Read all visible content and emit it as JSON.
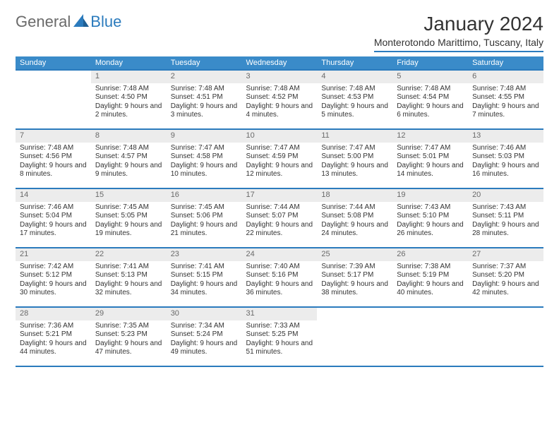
{
  "logo": {
    "general": "General",
    "blue": "Blue"
  },
  "title": "January 2024",
  "location": "Monterotondo Marittimo, Tuscany, Italy",
  "colors": {
    "header_bg": "#3a8bc9",
    "header_border": "#2b7bbd",
    "daynum_bg": "#ececec",
    "text": "#333333",
    "muted": "#6a6a6a"
  },
  "day_headers": [
    "Sunday",
    "Monday",
    "Tuesday",
    "Wednesday",
    "Thursday",
    "Friday",
    "Saturday"
  ],
  "weeks": [
    [
      {
        "blank": true
      },
      {
        "n": "1",
        "sunrise": "Sunrise: 7:48 AM",
        "sunset": "Sunset: 4:50 PM",
        "daylight": "Daylight: 9 hours and 2 minutes."
      },
      {
        "n": "2",
        "sunrise": "Sunrise: 7:48 AM",
        "sunset": "Sunset: 4:51 PM",
        "daylight": "Daylight: 9 hours and 3 minutes."
      },
      {
        "n": "3",
        "sunrise": "Sunrise: 7:48 AM",
        "sunset": "Sunset: 4:52 PM",
        "daylight": "Daylight: 9 hours and 4 minutes."
      },
      {
        "n": "4",
        "sunrise": "Sunrise: 7:48 AM",
        "sunset": "Sunset: 4:53 PM",
        "daylight": "Daylight: 9 hours and 5 minutes."
      },
      {
        "n": "5",
        "sunrise": "Sunrise: 7:48 AM",
        "sunset": "Sunset: 4:54 PM",
        "daylight": "Daylight: 9 hours and 6 minutes."
      },
      {
        "n": "6",
        "sunrise": "Sunrise: 7:48 AM",
        "sunset": "Sunset: 4:55 PM",
        "daylight": "Daylight: 9 hours and 7 minutes."
      }
    ],
    [
      {
        "n": "7",
        "sunrise": "Sunrise: 7:48 AM",
        "sunset": "Sunset: 4:56 PM",
        "daylight": "Daylight: 9 hours and 8 minutes."
      },
      {
        "n": "8",
        "sunrise": "Sunrise: 7:48 AM",
        "sunset": "Sunset: 4:57 PM",
        "daylight": "Daylight: 9 hours and 9 minutes."
      },
      {
        "n": "9",
        "sunrise": "Sunrise: 7:47 AM",
        "sunset": "Sunset: 4:58 PM",
        "daylight": "Daylight: 9 hours and 10 minutes."
      },
      {
        "n": "10",
        "sunrise": "Sunrise: 7:47 AM",
        "sunset": "Sunset: 4:59 PM",
        "daylight": "Daylight: 9 hours and 12 minutes."
      },
      {
        "n": "11",
        "sunrise": "Sunrise: 7:47 AM",
        "sunset": "Sunset: 5:00 PM",
        "daylight": "Daylight: 9 hours and 13 minutes."
      },
      {
        "n": "12",
        "sunrise": "Sunrise: 7:47 AM",
        "sunset": "Sunset: 5:01 PM",
        "daylight": "Daylight: 9 hours and 14 minutes."
      },
      {
        "n": "13",
        "sunrise": "Sunrise: 7:46 AM",
        "sunset": "Sunset: 5:03 PM",
        "daylight": "Daylight: 9 hours and 16 minutes."
      }
    ],
    [
      {
        "n": "14",
        "sunrise": "Sunrise: 7:46 AM",
        "sunset": "Sunset: 5:04 PM",
        "daylight": "Daylight: 9 hours and 17 minutes."
      },
      {
        "n": "15",
        "sunrise": "Sunrise: 7:45 AM",
        "sunset": "Sunset: 5:05 PM",
        "daylight": "Daylight: 9 hours and 19 minutes."
      },
      {
        "n": "16",
        "sunrise": "Sunrise: 7:45 AM",
        "sunset": "Sunset: 5:06 PM",
        "daylight": "Daylight: 9 hours and 21 minutes."
      },
      {
        "n": "17",
        "sunrise": "Sunrise: 7:44 AM",
        "sunset": "Sunset: 5:07 PM",
        "daylight": "Daylight: 9 hours and 22 minutes."
      },
      {
        "n": "18",
        "sunrise": "Sunrise: 7:44 AM",
        "sunset": "Sunset: 5:08 PM",
        "daylight": "Daylight: 9 hours and 24 minutes."
      },
      {
        "n": "19",
        "sunrise": "Sunrise: 7:43 AM",
        "sunset": "Sunset: 5:10 PM",
        "daylight": "Daylight: 9 hours and 26 minutes."
      },
      {
        "n": "20",
        "sunrise": "Sunrise: 7:43 AM",
        "sunset": "Sunset: 5:11 PM",
        "daylight": "Daylight: 9 hours and 28 minutes."
      }
    ],
    [
      {
        "n": "21",
        "sunrise": "Sunrise: 7:42 AM",
        "sunset": "Sunset: 5:12 PM",
        "daylight": "Daylight: 9 hours and 30 minutes."
      },
      {
        "n": "22",
        "sunrise": "Sunrise: 7:41 AM",
        "sunset": "Sunset: 5:13 PM",
        "daylight": "Daylight: 9 hours and 32 minutes."
      },
      {
        "n": "23",
        "sunrise": "Sunrise: 7:41 AM",
        "sunset": "Sunset: 5:15 PM",
        "daylight": "Daylight: 9 hours and 34 minutes."
      },
      {
        "n": "24",
        "sunrise": "Sunrise: 7:40 AM",
        "sunset": "Sunset: 5:16 PM",
        "daylight": "Daylight: 9 hours and 36 minutes."
      },
      {
        "n": "25",
        "sunrise": "Sunrise: 7:39 AM",
        "sunset": "Sunset: 5:17 PM",
        "daylight": "Daylight: 9 hours and 38 minutes."
      },
      {
        "n": "26",
        "sunrise": "Sunrise: 7:38 AM",
        "sunset": "Sunset: 5:19 PM",
        "daylight": "Daylight: 9 hours and 40 minutes."
      },
      {
        "n": "27",
        "sunrise": "Sunrise: 7:37 AM",
        "sunset": "Sunset: 5:20 PM",
        "daylight": "Daylight: 9 hours and 42 minutes."
      }
    ],
    [
      {
        "n": "28",
        "sunrise": "Sunrise: 7:36 AM",
        "sunset": "Sunset: 5:21 PM",
        "daylight": "Daylight: 9 hours and 44 minutes."
      },
      {
        "n": "29",
        "sunrise": "Sunrise: 7:35 AM",
        "sunset": "Sunset: 5:23 PM",
        "daylight": "Daylight: 9 hours and 47 minutes."
      },
      {
        "n": "30",
        "sunrise": "Sunrise: 7:34 AM",
        "sunset": "Sunset: 5:24 PM",
        "daylight": "Daylight: 9 hours and 49 minutes."
      },
      {
        "n": "31",
        "sunrise": "Sunrise: 7:33 AM",
        "sunset": "Sunset: 5:25 PM",
        "daylight": "Daylight: 9 hours and 51 minutes."
      },
      {
        "blank": true
      },
      {
        "blank": true
      },
      {
        "blank": true
      }
    ]
  ]
}
